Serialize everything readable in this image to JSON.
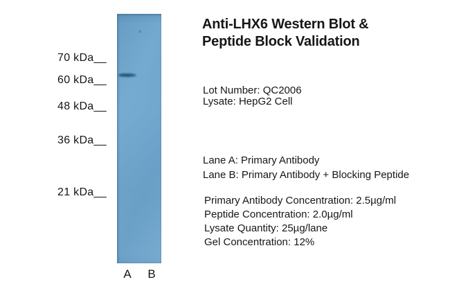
{
  "figure": {
    "title_line1": "Anti-LHX6 Western Blot &",
    "title_line2": "Peptide Block Validation",
    "lot_number": "Lot Number: QC2006",
    "lysate": "Lysate: HepG2 Cell",
    "lane_a_desc": "Lane A: Primary Antibody",
    "lane_b_desc": "Lane B: Primary Antibody + Blocking Peptide",
    "primary_conc": "Primary Antibody Concentration: 2.5µg/ml",
    "peptide_conc": "Peptide Concentration: 2.0µg/ml",
    "lysate_qty": "Lysate Quantity: 25µg/lane",
    "gel_conc": "Gel Concentration: 12%"
  },
  "markers": [
    {
      "label": "70 kDa__"
    },
    {
      "label": "60 kDa__"
    },
    {
      "label": "48 kDa__"
    },
    {
      "label": "36 kDa__"
    },
    {
      "label": "21 kDa__"
    }
  ],
  "lane_labels": {
    "a": "A",
    "b": "B"
  },
  "blot": {
    "band_lane": "A",
    "band_position": "between 60 and 70 kDa markers",
    "strip_color": "#6da5cd",
    "band_color": "#2c5a78",
    "text_color": "#141414",
    "background_color": "#ffffff"
  }
}
